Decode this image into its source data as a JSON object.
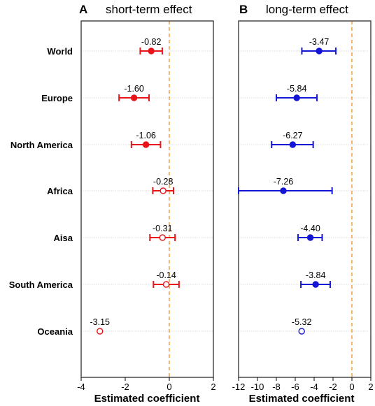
{
  "xlabel": "Estimated coefficient",
  "categories": [
    "World",
    "Europe",
    "North America",
    "Africa",
    "Aisa",
    "South America",
    "Oceania"
  ],
  "chart_data": [
    {
      "type": "scatter",
      "panel_letter": "A",
      "title": "short-term effect",
      "xlabel": "Estimated coefficient",
      "xlim": [
        -4,
        2
      ],
      "xticks": [
        "-4",
        "-2",
        "0",
        "2"
      ],
      "reference_line": 0,
      "color": "#e8141a",
      "categories": [
        "World",
        "Europe",
        "North America",
        "Africa",
        "Aisa",
        "South America",
        "Oceania"
      ],
      "values": [
        -0.82,
        -1.6,
        -1.06,
        -0.28,
        -0.31,
        -0.14,
        -3.15
      ],
      "labels": [
        "-0.82",
        "-1.60",
        "-1.06",
        "-0.28",
        "-0.31",
        "-0.14",
        "-3.15"
      ],
      "ci_low": [
        -1.32,
        -2.28,
        -1.72,
        -0.75,
        -0.88,
        -0.72,
        null
      ],
      "ci_high": [
        -0.32,
        -0.92,
        -0.4,
        0.19,
        0.26,
        0.44,
        null
      ],
      "significant": [
        true,
        true,
        true,
        false,
        false,
        false,
        false
      ]
    },
    {
      "type": "scatter",
      "panel_letter": "B",
      "title": "long-term effect",
      "xlabel": "Estimated coefficient",
      "xlim": [
        -12,
        2
      ],
      "xticks": [
        "-12",
        "-10",
        "-8",
        "-6",
        "-4",
        "-2",
        "0",
        "2"
      ],
      "reference_line": 0,
      "color": "#1515d6",
      "categories": [
        "World",
        "Europe",
        "North America",
        "Africa",
        "Aisa",
        "South America",
        "Oceania"
      ],
      "values": [
        -3.47,
        -5.84,
        -6.27,
        -7.26,
        -4.4,
        -3.84,
        -5.32
      ],
      "labels": [
        "-3.47",
        "-5.84",
        "-6.27",
        "-7.26",
        "-4.40",
        "-3.84",
        "-5.32"
      ],
      "ci_low": [
        -5.3,
        -8.0,
        -8.5,
        -12.0,
        -5.7,
        -5.4,
        null
      ],
      "ci_high": [
        -1.7,
        -3.7,
        -4.1,
        -2.1,
        -3.15,
        -2.3,
        null
      ],
      "significant": [
        true,
        true,
        true,
        true,
        true,
        true,
        false
      ]
    }
  ],
  "colors": {
    "reference_line": "#f5a54a",
    "gridline": "#cfcfcf",
    "frame": "#555555"
  }
}
